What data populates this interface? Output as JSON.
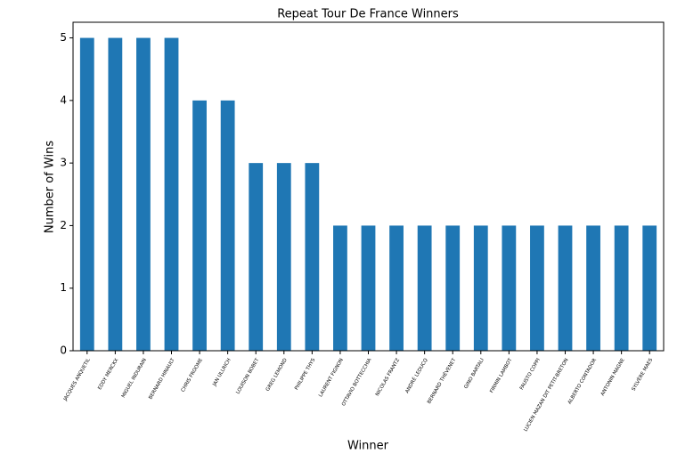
{
  "chart_data": {
    "type": "bar",
    "title": "Repeat Tour De France Winners",
    "x_label": "Winner",
    "y_label": "Number of Wins",
    "categories": [
      "JACQUES ANQUETIL",
      "EDDY MERCKX",
      "MIGUEL INDURAIN",
      "BERNARD HINAULT",
      "CHRIS FROOME",
      "JAN ULLRICH",
      "LOUISON BOBET",
      "GREG LEMOND",
      "PHILIPPE THYS",
      "LAURENT FIGNON",
      "OTTAVIO BOTTECCHIA",
      "NICOLAS FRANTZ",
      "ANDRÉ LEDUCQ",
      "BERNARD THÉVENET",
      "GINO BARTALI",
      "FIRMIN LAMBOT",
      "FAUSTO COPPI",
      "LUCIEN MAZAN DIT PETIT-BRETON",
      "ALBERTO CONTADOR",
      "ANTONIN MAGNE",
      "SYLVÈRE MAES"
    ],
    "values": [
      5,
      5,
      5,
      5,
      4,
      4,
      3,
      3,
      3,
      2,
      2,
      2,
      2,
      2,
      2,
      2,
      2,
      2,
      2,
      2,
      2
    ],
    "color": "#1f77b4",
    "ylim": [
      0,
      5.25
    ],
    "yticks": [
      0,
      1,
      2,
      3,
      4,
      5
    ],
    "grid": false
  }
}
